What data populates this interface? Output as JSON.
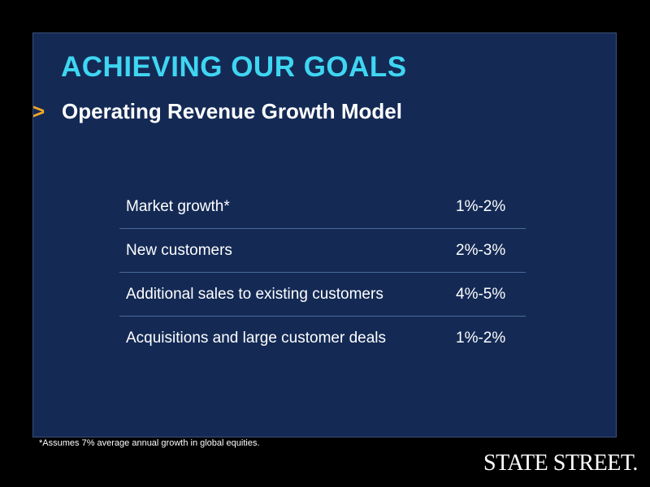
{
  "slide": {
    "title": "ACHIEVING OUR GOALS",
    "bullet_marker": ">",
    "subtitle": "Operating Revenue Growth Model",
    "rows": [
      {
        "label": "Market growth*",
        "value": "1%-2%"
      },
      {
        "label": "New customers",
        "value": "2%-3%"
      },
      {
        "label": "Additional sales to existing customers",
        "value": "4%-5%"
      },
      {
        "label": "Acquisitions and large customer deals",
        "value": "1%-2%"
      }
    ],
    "footnote": "*Assumes 7% average annual growth in global equities.",
    "logo": "STATE STREET."
  },
  "colors": {
    "background": "#000000",
    "panel": "#142a55",
    "title": "#3fd6f2",
    "bullet": "#f5a623",
    "text": "#ffffff"
  }
}
